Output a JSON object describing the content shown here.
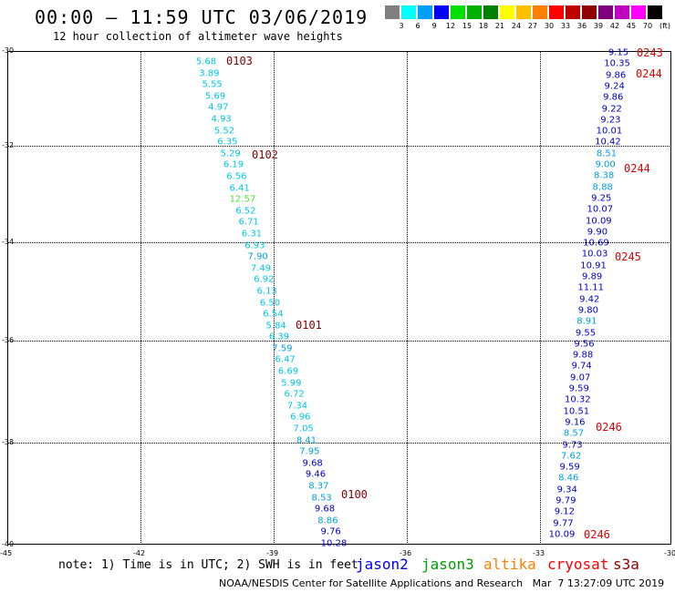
{
  "header": {
    "title": "00:00 – 11:59 UTC 03/06/2019",
    "subtitle": "12 hour collection of altimeter wave heights"
  },
  "legend": {
    "unit": "(ft)",
    "bins": [
      {
        "label": "3",
        "color": "#808080"
      },
      {
        "label": "6",
        "color": "#00ffff"
      },
      {
        "label": "9",
        "color": "#00a0ff"
      },
      {
        "label": "12",
        "color": "#0000ff"
      },
      {
        "label": "15",
        "color": "#00e000"
      },
      {
        "label": "18",
        "color": "#00b000"
      },
      {
        "label": "21",
        "color": "#008000"
      },
      {
        "label": "24",
        "color": "#ffff00"
      },
      {
        "label": "27",
        "color": "#ffc000"
      },
      {
        "label": "30",
        "color": "#ff8000"
      },
      {
        "label": "33",
        "color": "#ff0000"
      },
      {
        "label": "36",
        "color": "#c00000"
      },
      {
        "label": "39",
        "color": "#900000"
      },
      {
        "label": "42",
        "color": "#800080"
      },
      {
        "label": "45",
        "color": "#c000c0"
      },
      {
        "label": "70",
        "color": "#ff00ff"
      },
      {
        "label": "",
        "color": "#000000"
      }
    ]
  },
  "axes": {
    "lat_labels": [
      "-30",
      "-32",
      "-34",
      "-36",
      "-38",
      "-40"
    ],
    "lon_labels": [
      "-45",
      "-42",
      "-39",
      "-36",
      "-33",
      "-30"
    ]
  },
  "track_west": {
    "color_cyan": "#00c8e8",
    "values": [
      "5.68",
      "3.89",
      "5.55",
      "5.69",
      "4.97",
      "4.93",
      "5.52",
      "6.35",
      "5.29",
      "6.19",
      "6.56",
      "6.41",
      "12.57",
      "6.52",
      "6.71",
      "6.31",
      "6.93",
      "7.90",
      "7.49",
      "6.92",
      "6.13",
      "6.50",
      "6.54",
      "5.84",
      "6.39",
      "7.59",
      "6.47",
      "6.69",
      "5.99",
      "6.72",
      "7.34",
      "6.96",
      "7.05",
      "8.41",
      "7.95",
      "9.68",
      "9.46",
      "8.37",
      "8.53",
      "9.68",
      "8.86",
      "9.76",
      "10.28"
    ],
    "passes": [
      "0103",
      "0102",
      "0101",
      "0100"
    ]
  },
  "track_east": {
    "values": [
      "9.15",
      "10.35",
      "9.86",
      "9.24",
      "9.86",
      "9.22",
      "9.23",
      "10.01",
      "10.42",
      "8.51",
      "9.00",
      "8.38",
      "8.88",
      "9.25",
      "10.07",
      "10.09",
      "9.90",
      "10.69",
      "10.03",
      "10.91",
      "9.89",
      "11.11",
      "9.42",
      "9.80",
      "8.91",
      "9.55",
      "9.56",
      "9.88",
      "9.74",
      "9.07",
      "9.59",
      "10.32",
      "10.51",
      "9.16",
      "8.57",
      "9.73",
      "7.62",
      "9.59",
      "8.46",
      "9.34",
      "9.79",
      "9.12",
      "9.77",
      "10.09"
    ],
    "passes": [
      "0243",
      "0244",
      "0244",
      "0245",
      "0246",
      "0246"
    ]
  },
  "note": "note: 1) Time is in UTC; 2) SWH is in feet",
  "satellites": [
    {
      "name": "jason2",
      "color": "#0000ff"
    },
    {
      "name": "jason3",
      "color": "#00a000"
    },
    {
      "name": "altika",
      "color": "#ff8000"
    },
    {
      "name": "cryosat",
      "color": "#ff0000"
    },
    {
      "name": "s3a",
      "color": "#900000"
    }
  ],
  "footer": "NOAA/NESDIS Center for Satellite Applications and Research   Mar  7 13:27:09 UTC 2019"
}
